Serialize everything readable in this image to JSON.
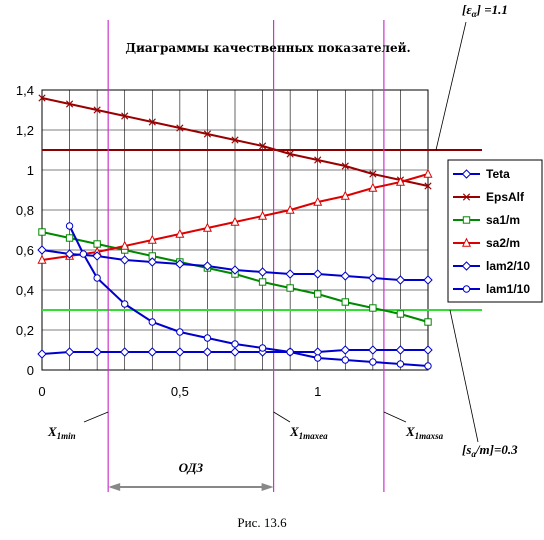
{
  "chart_data": {
    "type": "line",
    "title": "Диаграммы качественных показателей.",
    "xlim": [
      0,
      1.4
    ],
    "ylim": [
      0,
      1.4
    ],
    "x_ticks": [
      0,
      0.5,
      1
    ],
    "x_tick_labels": [
      "0",
      "0,5",
      "1"
    ],
    "y_ticks": [
      0,
      0.2,
      0.4,
      0.6,
      0.8,
      1.0,
      1.2,
      1.4
    ],
    "y_tick_labels": [
      "0",
      "0,2",
      "0,4",
      "0,6",
      "0,8",
      "1",
      "1,2",
      "1,4"
    ],
    "grid": true,
    "legend_position": "right",
    "series": [
      {
        "name": "Teta",
        "color": "#0000cc",
        "marker": "diamond",
        "x": [
          0,
          0.1,
          0.2,
          0.3,
          0.4,
          0.5,
          0.6,
          0.7,
          0.8,
          0.9,
          1.0,
          1.1,
          1.2,
          1.3,
          1.4
        ],
        "y": [
          0.08,
          0.09,
          0.09,
          0.09,
          0.09,
          0.09,
          0.09,
          0.09,
          0.09,
          0.09,
          0.09,
          0.1,
          0.1,
          0.1,
          0.1
        ]
      },
      {
        "name": "EpsAlf",
        "color": "#990000",
        "marker": "x",
        "x": [
          0,
          0.1,
          0.2,
          0.3,
          0.4,
          0.5,
          0.6,
          0.7,
          0.8,
          0.9,
          1.0,
          1.1,
          1.2,
          1.3,
          1.4
        ],
        "y": [
          1.36,
          1.33,
          1.3,
          1.27,
          1.24,
          1.21,
          1.18,
          1.15,
          1.12,
          1.08,
          1.05,
          1.02,
          0.98,
          0.95,
          0.92
        ]
      },
      {
        "name": "sa1/m",
        "color": "#008800",
        "marker": "square",
        "x": [
          0,
          0.1,
          0.2,
          0.3,
          0.4,
          0.5,
          0.6,
          0.7,
          0.8,
          0.9,
          1.0,
          1.1,
          1.2,
          1.3,
          1.4
        ],
        "y": [
          0.69,
          0.66,
          0.63,
          0.6,
          0.57,
          0.54,
          0.51,
          0.48,
          0.44,
          0.41,
          0.38,
          0.34,
          0.31,
          0.28,
          0.24
        ]
      },
      {
        "name": "sa2/m",
        "color": "#dd0000",
        "marker": "triangle",
        "x": [
          0,
          0.1,
          0.2,
          0.3,
          0.4,
          0.5,
          0.6,
          0.7,
          0.8,
          0.9,
          1.0,
          1.1,
          1.2,
          1.3,
          1.4
        ],
        "y": [
          0.55,
          0.57,
          0.59,
          0.62,
          0.65,
          0.68,
          0.71,
          0.74,
          0.77,
          0.8,
          0.84,
          0.87,
          0.91,
          0.94,
          0.98
        ]
      },
      {
        "name": "lam2/10",
        "color": "#0000cc",
        "marker": "diamond",
        "x": [
          0,
          0.1,
          0.2,
          0.3,
          0.4,
          0.5,
          0.6,
          0.7,
          0.8,
          0.9,
          1.0,
          1.1,
          1.2,
          1.3,
          1.4
        ],
        "y": [
          0.6,
          0.58,
          0.57,
          0.55,
          0.54,
          0.53,
          0.52,
          0.5,
          0.49,
          0.48,
          0.48,
          0.47,
          0.46,
          0.45,
          0.45
        ]
      },
      {
        "name": "lam1/10",
        "color": "#0000cc",
        "marker": "circle",
        "x": [
          0.1,
          0.15,
          0.2,
          0.3,
          0.4,
          0.5,
          0.6,
          0.7,
          0.8,
          0.9,
          1.0,
          1.1,
          1.2,
          1.3,
          1.4
        ],
        "y": [
          0.72,
          0.58,
          0.46,
          0.33,
          0.24,
          0.19,
          0.16,
          0.13,
          0.11,
          0.09,
          0.06,
          0.05,
          0.04,
          0.03,
          0.02
        ]
      }
    ],
    "reference_lines": [
      {
        "orientation": "horizontal",
        "y": 1.1,
        "color": "#880000",
        "label": "[εα] =1.1"
      },
      {
        "orientation": "horizontal",
        "y": 0.3,
        "color": "#33dd33",
        "label": "[sa/m]=0.3"
      }
    ],
    "vertical_markers": [
      {
        "x": 0.24,
        "label": "X1min"
      },
      {
        "x": 0.84,
        "label": "X1maxea"
      },
      {
        "x": 1.24,
        "label": "X1maxsa"
      }
    ],
    "range_label": "ОДЗ",
    "caption": "Рис. 13.6"
  }
}
